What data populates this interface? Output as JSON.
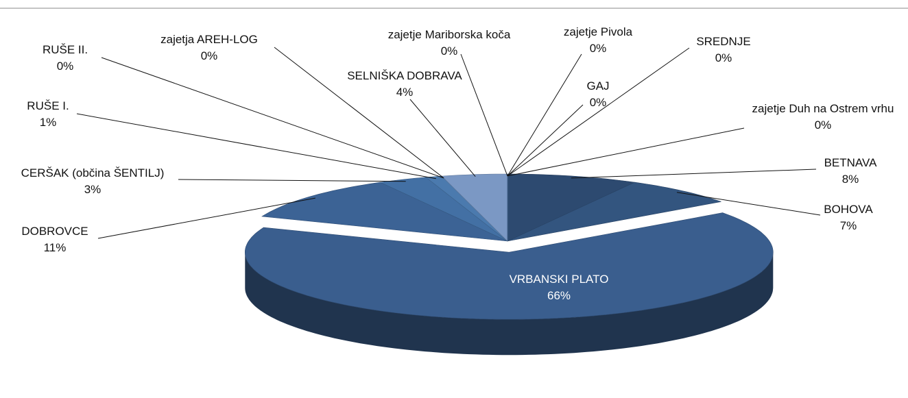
{
  "chart_data": {
    "type": "pie",
    "categories": [
      "BETNAVA",
      "BOHOVA",
      "VRBANSKI PLATO",
      "DOBROVCE",
      "CERŠAK (občina ŠENTILJ)",
      "RUŠE I.",
      "RUŠE II.",
      "zajetja AREH-LOG",
      "SELNIŠKA DOBRAVA",
      "zajetje Mariborska koča",
      "zajetje Pivola",
      "GAJ",
      "SREDNJE",
      "zajetje Duh na Ostrem vrhu"
    ],
    "values": [
      8,
      7,
      66,
      11,
      3,
      1,
      0,
      0,
      4,
      0,
      0,
      0,
      0,
      0
    ],
    "value_labels": [
      "8%",
      "7%",
      "66%",
      "11%",
      "3%",
      "1%",
      "0%",
      "0%",
      "4%",
      "0%",
      "0%",
      "0%",
      "0%",
      "0%"
    ],
    "colors": [
      "#2d4a70",
      "#33557f",
      "#3a5e8e",
      "#3c6395",
      "#4370a4",
      "#4b7aae",
      "#5584b6",
      "#5d8bbb",
      "#7b98c4",
      "#a9bcd9",
      "#8ea8cf",
      "#6f90c0",
      "#5f86b8",
      "#4e76a8"
    ]
  }
}
